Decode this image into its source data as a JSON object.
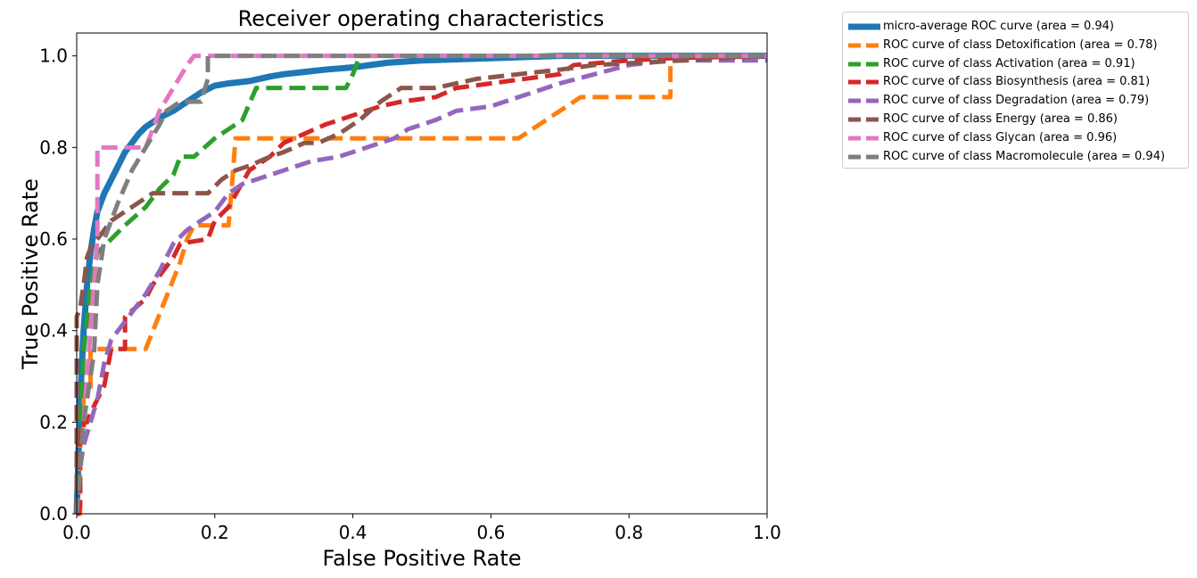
{
  "chart_data": {
    "type": "line",
    "title": "Receiver operating characteristics",
    "xlabel": "False Positive Rate",
    "ylabel": "True Positive Rate",
    "xlim": [
      0.0,
      1.0
    ],
    "ylim": [
      0.0,
      1.05
    ],
    "xticks": [
      "0.0",
      "0.2",
      "0.4",
      "0.6",
      "0.8",
      "1.0"
    ],
    "yticks": [
      "0.0",
      "0.2",
      "0.4",
      "0.6",
      "0.8",
      "1.0"
    ],
    "grid": false,
    "legend_position": "outside-top-right",
    "series": [
      {
        "name": "micro-average ROC curve (area = 0.94)",
        "color": "#1f77b4",
        "style": "solid",
        "x": [
          0.0,
          0.005,
          0.01,
          0.015,
          0.02,
          0.025,
          0.03,
          0.04,
          0.05,
          0.06,
          0.07,
          0.08,
          0.09,
          0.1,
          0.12,
          0.14,
          0.16,
          0.18,
          0.2,
          0.22,
          0.25,
          0.28,
          0.3,
          0.33,
          0.36,
          0.4,
          0.45,
          0.5,
          0.6,
          0.7,
          0.8,
          1.0
        ],
        "y": [
          0.0,
          0.25,
          0.4,
          0.5,
          0.57,
          0.62,
          0.66,
          0.7,
          0.73,
          0.76,
          0.79,
          0.81,
          0.83,
          0.845,
          0.865,
          0.88,
          0.9,
          0.92,
          0.935,
          0.94,
          0.945,
          0.955,
          0.96,
          0.965,
          0.97,
          0.975,
          0.985,
          0.99,
          0.995,
          1.0,
          1.0,
          1.0
        ]
      },
      {
        "name": "ROC curve of class Detoxification (area = 0.78)",
        "color": "#ff7f0e",
        "style": "dashed",
        "x": [
          0.0,
          0.005,
          0.005,
          0.01,
          0.01,
          0.02,
          0.02,
          0.03,
          0.03,
          0.1,
          0.15,
          0.16,
          0.17,
          0.2,
          0.21,
          0.22,
          0.225,
          0.23,
          0.3,
          0.64,
          0.73,
          0.73,
          0.86,
          0.86,
          1.0
        ],
        "y": [
          0.0,
          0.0,
          0.18,
          0.18,
          0.27,
          0.27,
          0.36,
          0.36,
          0.36,
          0.36,
          0.55,
          0.6,
          0.63,
          0.63,
          0.63,
          0.63,
          0.72,
          0.82,
          0.82,
          0.82,
          0.91,
          0.91,
          0.91,
          1.0,
          1.0
        ]
      },
      {
        "name": "ROC curve of class Activation (area = 0.91)",
        "color": "#2ca02c",
        "style": "dashed",
        "x": [
          0.0,
          0.01,
          0.02,
          0.03,
          0.05,
          0.07,
          0.1,
          0.12,
          0.14,
          0.15,
          0.17,
          0.2,
          0.24,
          0.26,
          0.3,
          0.39,
          0.4,
          0.41,
          1.0
        ],
        "y": [
          0.0,
          0.35,
          0.5,
          0.57,
          0.6,
          0.63,
          0.67,
          0.71,
          0.74,
          0.78,
          0.78,
          0.82,
          0.86,
          0.93,
          0.93,
          0.93,
          0.96,
          1.0,
          1.0
        ]
      },
      {
        "name": "ROC curve of class Biosynthesis (area = 0.81)",
        "color": "#d62728",
        "style": "dashed",
        "x": [
          0.0,
          0.003,
          0.005,
          0.005,
          0.01,
          0.01,
          0.015,
          0.02,
          0.04,
          0.05,
          0.07,
          0.07,
          0.1,
          0.11,
          0.14,
          0.15,
          0.19,
          0.2,
          0.22,
          0.25,
          0.28,
          0.3,
          0.33,
          0.36,
          0.4,
          0.44,
          0.47,
          0.52,
          0.55,
          0.6,
          0.65,
          0.7,
          0.72,
          0.76,
          0.8,
          0.86,
          1.0
        ],
        "y": [
          0.0,
          0.0,
          0.02,
          0.19,
          0.19,
          0.2,
          0.2,
          0.22,
          0.28,
          0.36,
          0.36,
          0.43,
          0.47,
          0.5,
          0.56,
          0.59,
          0.6,
          0.64,
          0.67,
          0.75,
          0.78,
          0.81,
          0.83,
          0.85,
          0.87,
          0.89,
          0.9,
          0.91,
          0.93,
          0.94,
          0.95,
          0.96,
          0.98,
          0.985,
          0.99,
          0.995,
          1.0
        ]
      },
      {
        "name": "ROC curve of class Degradation (area = 0.79)",
        "color": "#9467bd",
        "style": "dashed",
        "x": [
          0.0,
          0.005,
          0.01,
          0.02,
          0.03,
          0.04,
          0.05,
          0.06,
          0.08,
          0.1,
          0.12,
          0.14,
          0.16,
          0.18,
          0.2,
          0.22,
          0.24,
          0.26,
          0.3,
          0.34,
          0.38,
          0.42,
          0.46,
          0.48,
          0.52,
          0.55,
          0.6,
          0.66,
          0.7,
          0.75,
          0.8,
          0.86,
          1.0
        ],
        "y": [
          0.0,
          0.1,
          0.15,
          0.2,
          0.25,
          0.33,
          0.38,
          0.4,
          0.44,
          0.48,
          0.53,
          0.59,
          0.62,
          0.64,
          0.66,
          0.7,
          0.72,
          0.73,
          0.75,
          0.77,
          0.78,
          0.8,
          0.82,
          0.84,
          0.86,
          0.88,
          0.89,
          0.92,
          0.94,
          0.96,
          0.98,
          0.99,
          0.99
        ]
      },
      {
        "name": "ROC curve of class Energy (area = 0.86)",
        "color": "#8c564b",
        "style": "dashed",
        "x": [
          0.0,
          0.0,
          0.005,
          0.01,
          0.015,
          0.02,
          0.03,
          0.04,
          0.05,
          0.07,
          0.09,
          0.11,
          0.13,
          0.15,
          0.19,
          0.21,
          0.23,
          0.25,
          0.28,
          0.3,
          0.33,
          0.35,
          0.38,
          0.41,
          0.44,
          0.47,
          0.52,
          0.58,
          0.64,
          0.7,
          0.75,
          1.0
        ],
        "y": [
          0.0,
          0.43,
          0.45,
          0.5,
          0.56,
          0.58,
          0.6,
          0.62,
          0.64,
          0.66,
          0.68,
          0.7,
          0.7,
          0.7,
          0.7,
          0.73,
          0.75,
          0.76,
          0.78,
          0.79,
          0.81,
          0.81,
          0.83,
          0.86,
          0.9,
          0.93,
          0.93,
          0.95,
          0.96,
          0.97,
          0.98,
          1.0
        ]
      },
      {
        "name": "ROC curve of class Glycan (area = 0.96)",
        "color": "#e377c2",
        "style": "dashed",
        "x": [
          0.0,
          0.01,
          0.02,
          0.03,
          0.03,
          0.09,
          0.1,
          0.12,
          0.16,
          0.17,
          1.0
        ],
        "y": [
          0.0,
          0.2,
          0.4,
          0.6,
          0.8,
          0.8,
          0.8,
          0.88,
          0.98,
          1.0,
          1.0
        ]
      },
      {
        "name": "ROC curve of class Macromolecule (area = 0.94)",
        "color": "#7f7f7f",
        "style": "dashed",
        "x": [
          0.0,
          0.01,
          0.015,
          0.02,
          0.025,
          0.03,
          0.04,
          0.06,
          0.08,
          0.1,
          0.12,
          0.13,
          0.15,
          0.16,
          0.18,
          0.19,
          0.19,
          1.0
        ],
        "y": [
          0.0,
          0.2,
          0.25,
          0.3,
          0.35,
          0.5,
          0.6,
          0.68,
          0.75,
          0.8,
          0.85,
          0.88,
          0.9,
          0.9,
          0.9,
          0.95,
          1.0,
          1.0
        ]
      }
    ]
  }
}
